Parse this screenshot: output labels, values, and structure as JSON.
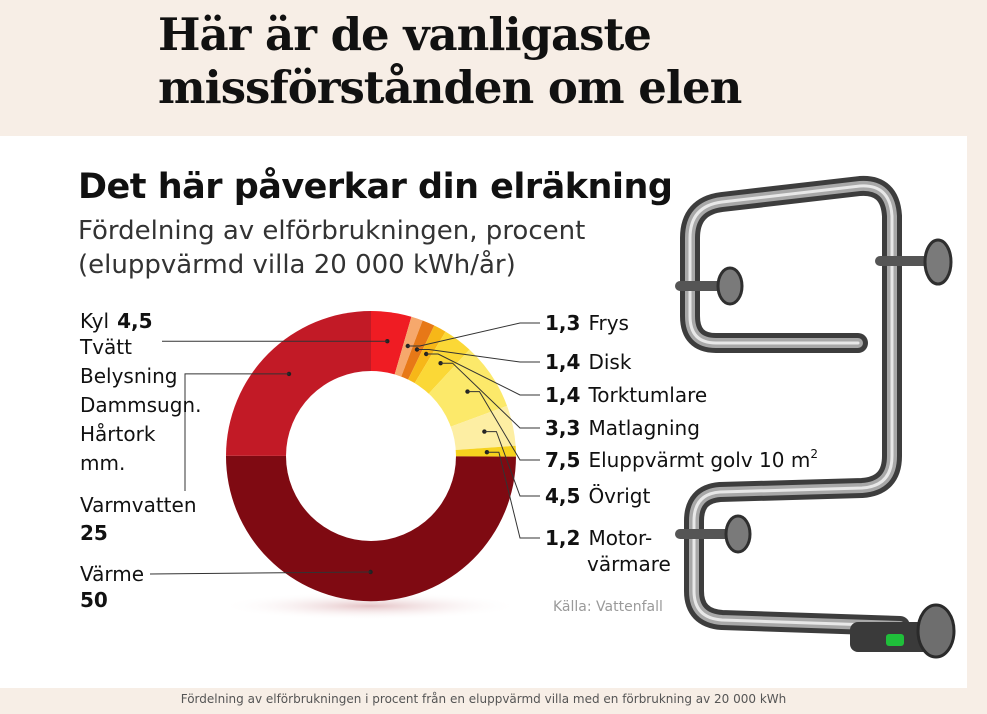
{
  "headline": "Här är de vanligaste missförstånden om elen",
  "caption": "Fördelning av elförbrukningen i procent från en eluppvärmd villa med en förbrukning av 20 000 kWh",
  "chart_data": {
    "type": "pie",
    "title": "Det här påverkar din elräkning",
    "subtitle": "Fördelning av elförbrukningen, procent (eluppvärmd villa 20 000 kWh/år)",
    "source": "Källa: Vattenfall",
    "slices": [
      {
        "value": 4.5,
        "value_label": "4,5",
        "name": [
          "Kyl"
        ],
        "color": "#ef1c23"
      },
      {
        "value": 1.3,
        "value_label": "1,3",
        "name": [
          "Frys"
        ],
        "color": "#f6a86c"
      },
      {
        "value": 1.4,
        "value_label": "1,4",
        "name": [
          "Disk"
        ],
        "color": "#e77817"
      },
      {
        "value": 1.4,
        "value_label": "1,4",
        "name": [
          "Torktumlare"
        ],
        "color": "#f7b718"
      },
      {
        "value": 3.3,
        "value_label": "3,3",
        "name": [
          "Matlagning"
        ],
        "color": "#fbd836"
      },
      {
        "value": 7.5,
        "value_label": "7,5",
        "name": [
          "Eluppvärmt golv 10 m",
          "2"
        ],
        "color": "#fce96a"
      },
      {
        "value": 4.5,
        "value_label": "4,5",
        "name": [
          "Övrigt"
        ],
        "color": "#fdeea3"
      },
      {
        "value": 1.2,
        "value_label": "1,2",
        "name": [
          "Motor-",
          "värmare"
        ],
        "color": "#f6d21e"
      },
      {
        "value": 50,
        "value_label": "50",
        "name": [
          "Värme"
        ],
        "color": "#7f0a12"
      },
      {
        "value": 25,
        "value_label": "25",
        "name": [
          "Varmvatten"
        ],
        "color": "#c21a26"
      }
    ],
    "kyl_note_lines": [
      "Tvätt",
      "Belysning",
      "Dammsugn.",
      "Hårtork",
      "mm."
    ]
  }
}
